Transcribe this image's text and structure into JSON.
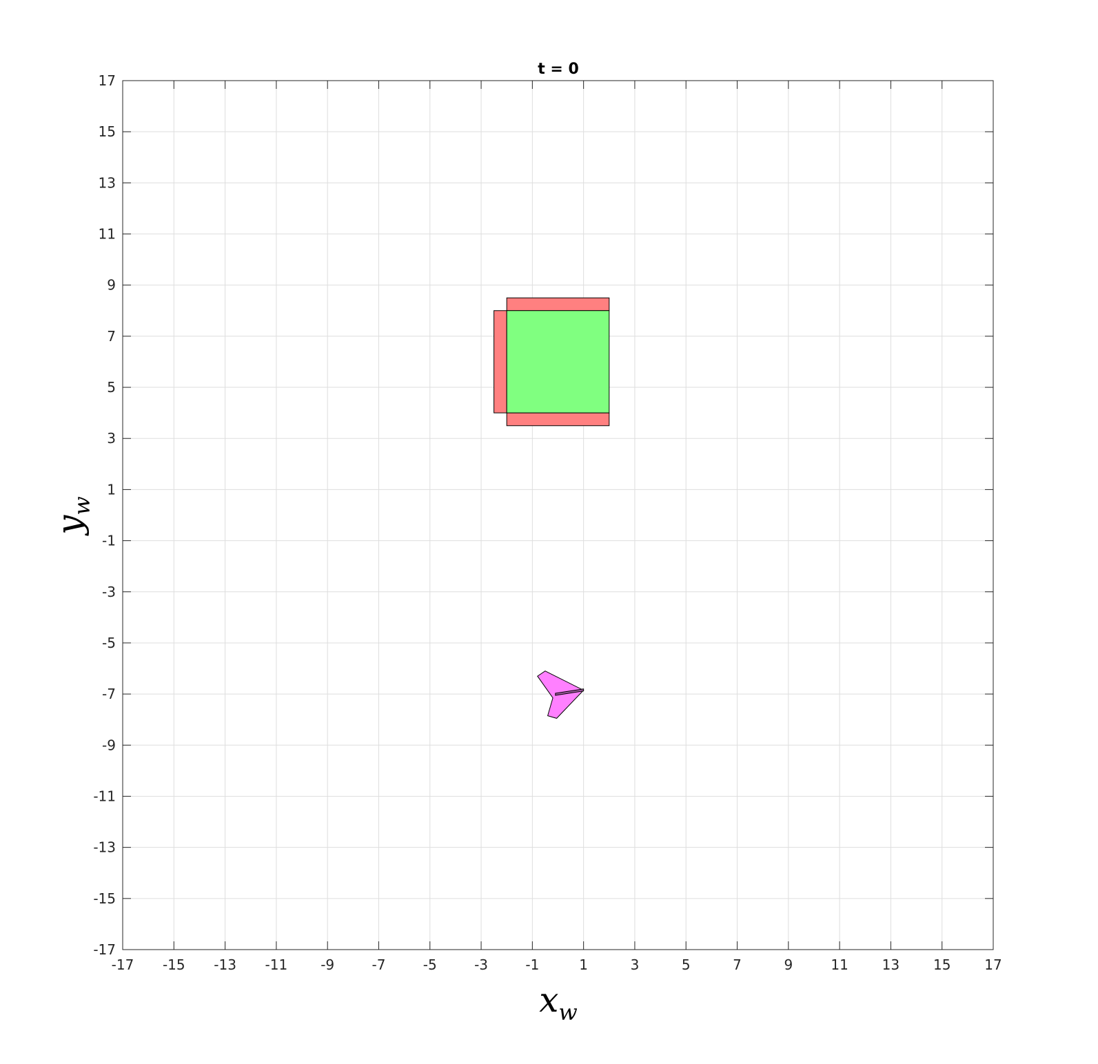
{
  "chart_data": {
    "type": "scatter",
    "title": "t = 0",
    "xlabel": {
      "main": "x",
      "sub": "w"
    },
    "ylabel": {
      "main": "y",
      "sub": "w"
    },
    "xlim": [
      -17,
      17
    ],
    "ylim": [
      -17,
      17
    ],
    "xticks": [
      -17,
      -15,
      -13,
      -11,
      -9,
      -7,
      -5,
      -3,
      -1,
      1,
      3,
      5,
      7,
      9,
      11,
      13,
      15,
      17
    ],
    "yticks": [
      -17,
      -15,
      -13,
      -11,
      -9,
      -7,
      -5,
      -3,
      -1,
      1,
      3,
      5,
      7,
      9,
      11,
      13,
      15,
      17
    ],
    "xtick_labels": [
      "-17",
      "-15",
      "-13",
      "-11",
      "-9",
      "-7",
      "-5",
      "-3",
      "-1",
      "1",
      "3",
      "5",
      "7",
      "9",
      "11",
      "13",
      "15",
      "17"
    ],
    "ytick_labels": [
      "-17",
      "-15",
      "-13",
      "-11",
      "-9",
      "-7",
      "-5",
      "-3",
      "-1",
      "1",
      "3",
      "5",
      "7",
      "9",
      "11",
      "13",
      "15",
      "17"
    ],
    "grid": true,
    "shapes": [
      {
        "name": "red-block-top",
        "color": "#ff8080",
        "points": [
          [
            -2,
            8
          ],
          [
            2,
            8
          ],
          [
            2,
            8.5
          ],
          [
            -2,
            8.5
          ]
        ]
      },
      {
        "name": "red-block-bottom",
        "color": "#ff8080",
        "points": [
          [
            -2,
            3.5
          ],
          [
            2,
            3.5
          ],
          [
            2,
            4
          ],
          [
            -2,
            4
          ]
        ]
      },
      {
        "name": "red-block-left",
        "color": "#ff8080",
        "points": [
          [
            -2.5,
            4
          ],
          [
            -2,
            4
          ],
          [
            -2,
            8
          ],
          [
            -2.5,
            8
          ]
        ]
      },
      {
        "name": "green-block",
        "color": "#80ff80",
        "points": [
          [
            -2,
            4
          ],
          [
            2,
            4
          ],
          [
            2,
            8
          ],
          [
            -2,
            8
          ]
        ]
      },
      {
        "name": "vehicle-body",
        "color": "#ff80ff",
        "points": [
          [
            -0.5,
            -6.1
          ],
          [
            1,
            -6.85
          ],
          [
            -0.05,
            -7.95
          ],
          [
            -0.4,
            -7.85
          ],
          [
            -0.2,
            -7.15
          ],
          [
            -0.8,
            -6.3
          ]
        ]
      },
      {
        "name": "vehicle-heading-bar",
        "color": "#a05aa0",
        "points": [
          [
            -0.1,
            -6.97
          ],
          [
            1.0,
            -6.8
          ],
          [
            1.0,
            -6.88
          ],
          [
            -0.1,
            -7.05
          ]
        ]
      }
    ]
  }
}
